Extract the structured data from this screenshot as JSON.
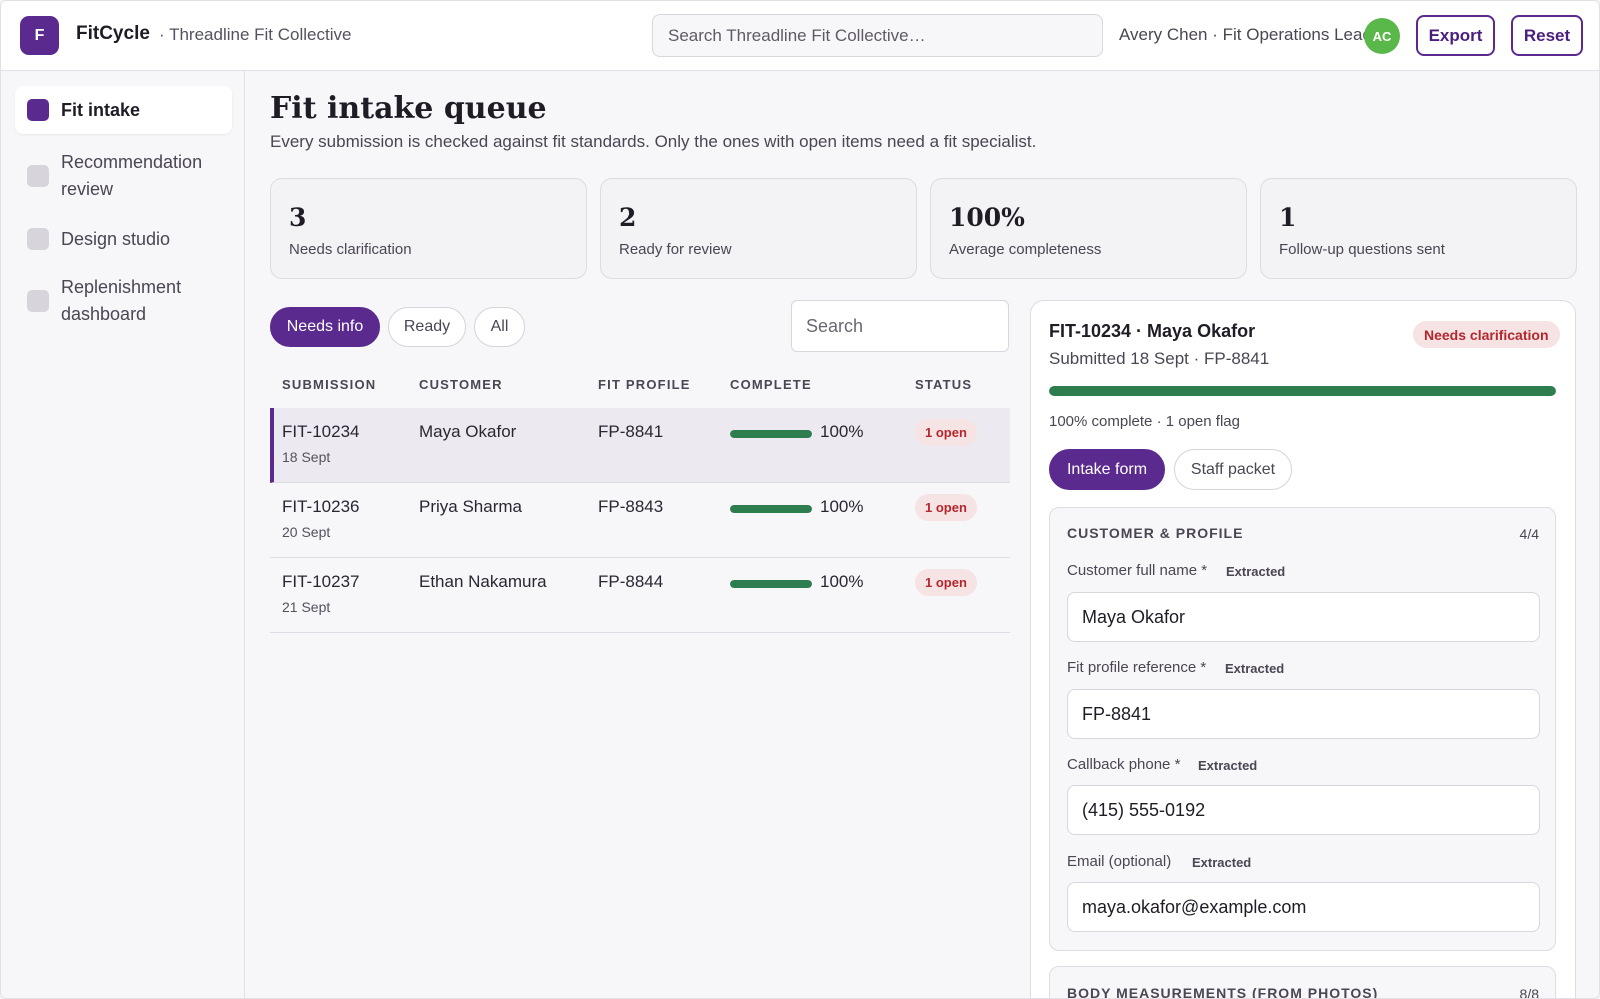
{
  "app": {
    "logo_letter": "F",
    "brand": "FitCycle",
    "org": "· Threadline Fit Collective",
    "search_placeholder": "Search Threadline Fit Collective…",
    "user": "Avery Chen · Fit Operations Lead",
    "avatar_initials": "AC",
    "export_label": "Export",
    "reset_label": "Reset"
  },
  "sidebar": {
    "items": [
      {
        "label": "Fit intake",
        "active": true
      },
      {
        "label": "Recommendation review",
        "active": false
      },
      {
        "label": "Design studio",
        "active": false
      },
      {
        "label": "Replenishment dashboard",
        "active": false
      }
    ]
  },
  "page": {
    "title": "Fit intake queue",
    "subtitle": "Every submission is checked against fit standards. Only the ones with open items need a fit specialist."
  },
  "kpis": [
    {
      "value": "3",
      "label": "Needs clarification"
    },
    {
      "value": "2",
      "label": "Ready for review"
    },
    {
      "value": "100%",
      "label": "Average completeness"
    },
    {
      "value": "1",
      "label": "Follow-up questions sent"
    }
  ],
  "filters": {
    "needs_info": "Needs info",
    "ready": "Ready",
    "all": "All",
    "active": "needs_info",
    "search_placeholder": "Search"
  },
  "table": {
    "headers": [
      "SUBMISSION",
      "CUSTOMER",
      "FIT PROFILE",
      "COMPLETE",
      "STATUS"
    ],
    "rows": [
      {
        "id": "FIT-10234",
        "date": "18 Sept",
        "customer": "Maya Okafor",
        "fit_profile": "FP-8841",
        "complete": "100%",
        "complete_fraction": 1.0,
        "status": "1 open",
        "selected": true
      },
      {
        "id": "FIT-10236",
        "date": "20 Sept",
        "customer": "Priya Sharma",
        "fit_profile": "FP-8843",
        "complete": "100%",
        "complete_fraction": 1.0,
        "status": "1 open",
        "selected": false
      },
      {
        "id": "FIT-10237",
        "date": "21 Sept",
        "customer": "Ethan Nakamura",
        "fit_profile": "FP-8844",
        "complete": "100%",
        "complete_fraction": 1.0,
        "status": "1 open",
        "selected": false
      }
    ]
  },
  "detail": {
    "title": "FIT-10234 · Maya Okafor",
    "subtitle": "Submitted 18 Sept · FP-8841",
    "status": "Needs clarification",
    "progress_fraction": 1.0,
    "note": "100% complete · 1 open flag",
    "tabs": [
      "Intake form",
      "Staff packet"
    ],
    "active_tab": 0,
    "section1": {
      "title": "CUSTOMER & PROFILE",
      "count": "4/4",
      "fields": [
        {
          "label": "Customer full name *",
          "tag": "Extracted",
          "value": "Maya Okafor"
        },
        {
          "label": "Fit profile reference *",
          "tag": "Extracted",
          "value": "FP-8841"
        },
        {
          "label": "Callback phone *",
          "tag": "Extracted",
          "value": "(415) 555-0192"
        },
        {
          "label": "Email (optional)",
          "tag": "Extracted",
          "value": "maya.okafor@example.com"
        }
      ]
    },
    "section2": {
      "title": "BODY MEASUREMENTS (FROM PHOTOS)",
      "count": "8/8"
    }
  },
  "colors": {
    "accent": "#5b2a8f",
    "success": "#2e7d4f",
    "danger": "#b3282e",
    "avatar": "#5ab84a"
  }
}
